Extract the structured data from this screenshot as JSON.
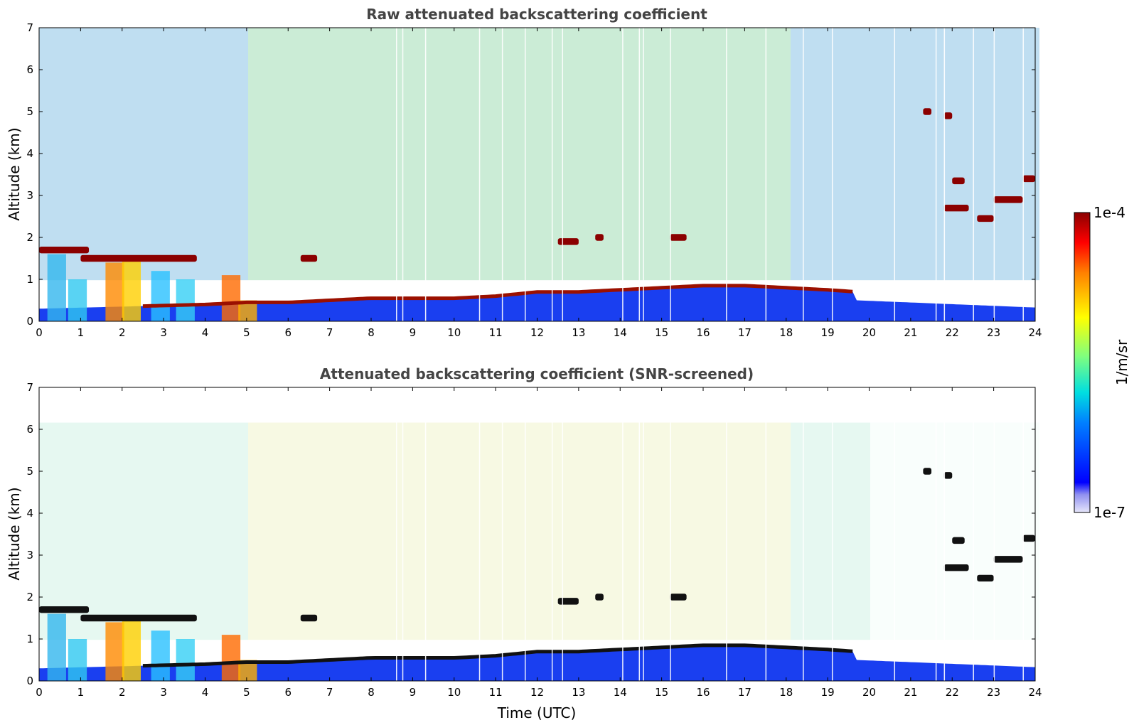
{
  "chart_data": [
    {
      "type": "heatmap",
      "title": "Raw attenuated backscattering coefficient",
      "xlabel": "",
      "ylabel": "Altitude (km)",
      "xlim": [
        0,
        24
      ],
      "ylim": [
        0,
        7
      ],
      "x_ticks": [
        "0",
        "1",
        "2",
        "3",
        "4",
        "5",
        "6",
        "7",
        "8",
        "9",
        "10",
        "11",
        "12",
        "13",
        "14",
        "15",
        "16",
        "17",
        "18",
        "19",
        "20",
        "21",
        "22",
        "23",
        "24"
      ],
      "y_ticks": [
        "0",
        "1",
        "2",
        "3",
        "4",
        "5",
        "6",
        "7"
      ],
      "boundary_layer_top_km": [
        [
          0,
          0.3
        ],
        [
          2,
          0.35
        ],
        [
          4,
          0.4
        ],
        [
          5,
          0.45
        ],
        [
          6,
          0.45
        ],
        [
          7,
          0.5
        ],
        [
          8,
          0.55
        ],
        [
          9,
          0.55
        ],
        [
          10,
          0.55
        ],
        [
          11,
          0.6
        ],
        [
          12,
          0.7
        ],
        [
          13,
          0.7
        ],
        [
          14,
          0.75
        ],
        [
          15,
          0.8
        ],
        [
          16,
          0.85
        ],
        [
          17,
          0.85
        ],
        [
          18,
          0.8
        ],
        [
          19,
          0.75
        ],
        [
          19.7,
          0.7
        ]
      ],
      "cloud_features": [
        {
          "time_start": 0.0,
          "time_end": 1.2,
          "alt_km": 1.7
        },
        {
          "time_start": 1.0,
          "time_end": 3.8,
          "alt_km": 1.5
        },
        {
          "time_start": 6.3,
          "time_end": 6.7,
          "alt_km": 1.5
        },
        {
          "time_start": 12.5,
          "time_end": 13.0,
          "alt_km": 1.9
        },
        {
          "time_start": 13.4,
          "time_end": 13.6,
          "alt_km": 2.0
        },
        {
          "time_start": 15.2,
          "time_end": 15.6,
          "alt_km": 2.0
        },
        {
          "time_start": 21.3,
          "time_end": 21.5,
          "alt_km": 5.0
        },
        {
          "time_start": 21.8,
          "time_end": 22.0,
          "alt_km": 4.9
        },
        {
          "time_start": 21.8,
          "time_end": 22.4,
          "alt_km": 2.7
        },
        {
          "time_start": 22.0,
          "time_end": 22.3,
          "alt_km": 3.35
        },
        {
          "time_start": 22.6,
          "time_end": 23.0,
          "alt_km": 2.45
        },
        {
          "time_start": 23.0,
          "time_end": 23.7,
          "alt_km": 2.9
        },
        {
          "time_start": 23.7,
          "time_end": 24.0,
          "alt_km": 3.4
        }
      ]
    },
    {
      "type": "heatmap",
      "title": "Attenuated backscattering coefficient (SNR-screened)",
      "xlabel": "Time (UTC)",
      "ylabel": "Altitude (km)",
      "xlim": [
        0,
        24
      ],
      "ylim": [
        0,
        7
      ],
      "x_ticks": [
        "0",
        "1",
        "2",
        "3",
        "4",
        "5",
        "6",
        "7",
        "8",
        "9",
        "10",
        "11",
        "12",
        "13",
        "14",
        "15",
        "16",
        "17",
        "18",
        "19",
        "20",
        "21",
        "22",
        "23",
        "24"
      ],
      "y_ticks": [
        "0",
        "1",
        "2",
        "3",
        "4",
        "5",
        "6",
        "7"
      ]
    }
  ],
  "colorbar": {
    "label": "1/m/sr",
    "max_label": "1e-4",
    "min_label": "1e-7",
    "scale": "log",
    "colors": [
      "#e6e6fa",
      "#0000ff",
      "#00bfff",
      "#7fff7f",
      "#ffff00",
      "#ff8000",
      "#ff0000",
      "#8b0000"
    ]
  }
}
